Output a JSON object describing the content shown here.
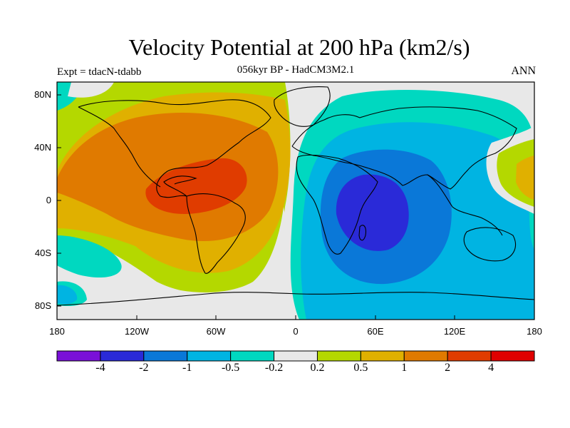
{
  "title": "Velocity Potential at 200 hPa (km2/s)",
  "subtitle": "056kyr BP - HadCM3M2.1",
  "left_string": "Expt = tdacN-tdabb",
  "right_string": "ANN",
  "lat_labels": [
    "80N",
    "40N",
    "0",
    "40S",
    "80S"
  ],
  "lon_labels": [
    "180",
    "120W",
    "60W",
    "0",
    "60E",
    "120E",
    "180"
  ],
  "colorbar": {
    "colors": [
      "#7a10d8",
      "#2a2ad8",
      "#0a78d8",
      "#00b4e2",
      "#00d8c0",
      "#e8e8e8",
      "#b4d800",
      "#e0b000",
      "#e07a00",
      "#e03c00",
      "#e00000"
    ],
    "labels": [
      "-4",
      "-2",
      "-1",
      "-0.5",
      "-0.2",
      "0.2",
      "0.5",
      "1",
      "2",
      "4"
    ]
  },
  "map_colors": {
    "neg_strong": "#2a2ad8",
    "neg_medium": "#0a78d8",
    "neg_weak": "#00b4e2",
    "neg_faint": "#00d8c0",
    "neutral": "#e8e8e8",
    "pos_faint": "#b4d800",
    "pos_weak": "#e0b000",
    "pos_medium": "#e07a00",
    "pos_strong": "#e03c00"
  }
}
